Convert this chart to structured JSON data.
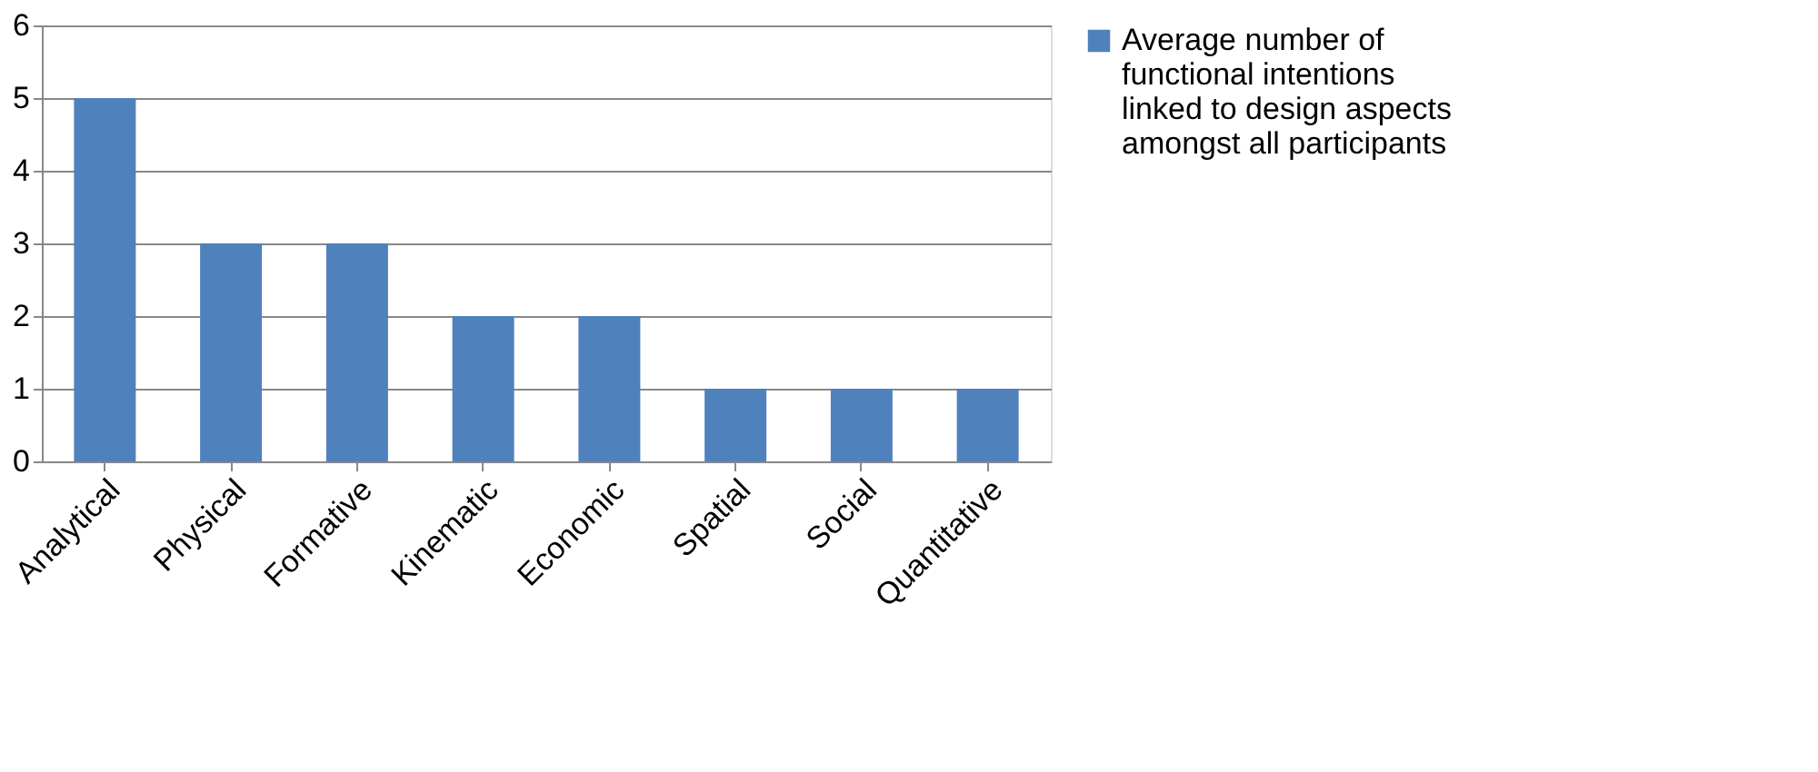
{
  "chart_data": {
    "type": "bar",
    "categories": [
      "Analytical",
      "Physical",
      "Formative",
      "Kinematic",
      "Economic",
      "Spatial",
      "Social",
      "Quantitative"
    ],
    "series": [
      {
        "name": "Average number of functional intentions linked to design aspects amongst all participants",
        "color": "#4f81bd",
        "values": [
          5,
          3,
          3,
          2,
          2,
          1,
          1,
          1
        ]
      }
    ],
    "ylim": [
      0,
      6
    ],
    "yticks": [
      0,
      1,
      2,
      3,
      4,
      5,
      6
    ],
    "grid": "y",
    "legend": "right"
  }
}
